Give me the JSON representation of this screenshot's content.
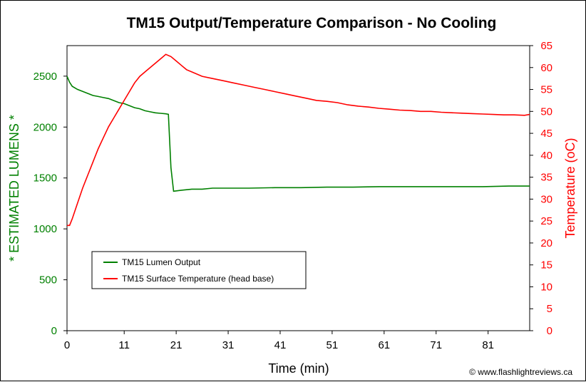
{
  "chart_data": {
    "type": "line",
    "title": "TM15 Output/Temperature Comparison - No Cooling",
    "xlabel": "Time (min)",
    "ylabel_left": "* ESTIMATED LUMENS *",
    "ylabel_right": "Temperature (oC)",
    "xlim": [
      0,
      89
    ],
    "ylim_left": [
      0,
      2800
    ],
    "ylim_right": [
      0,
      65
    ],
    "x_ticks": [
      "0",
      "11",
      "21",
      "31",
      "41",
      "51",
      "61",
      "71",
      "81"
    ],
    "x_tick_values": [
      0,
      11,
      21,
      31,
      41,
      51,
      61,
      71,
      81
    ],
    "y_left_ticks": [
      "0",
      "500",
      "1000",
      "1500",
      "2000",
      "2500"
    ],
    "y_left_tick_values": [
      0,
      500,
      1000,
      1500,
      2000,
      2500
    ],
    "y_right_ticks": [
      "0",
      "5",
      "10",
      "15",
      "20",
      "25",
      "30",
      "35",
      "40",
      "45",
      "50",
      "55",
      "60",
      "65"
    ],
    "y_right_tick_values": [
      0,
      5,
      10,
      15,
      20,
      25,
      30,
      35,
      40,
      45,
      50,
      55,
      60,
      65
    ],
    "grid": false,
    "legend_position": "lower-left",
    "credit": "© www.flashlightreviews.ca",
    "series": [
      {
        "name": "TM15 Lumen Output",
        "axis": "left",
        "color": "#008000",
        "x": [
          0,
          0.5,
          1,
          2,
          3,
          4,
          5,
          6,
          7,
          8,
          9,
          10,
          11,
          12,
          13,
          14,
          15,
          16,
          17,
          18,
          19,
          19.5,
          20,
          20.5,
          22,
          24,
          26,
          28,
          30,
          35,
          40,
          45,
          50,
          55,
          60,
          65,
          70,
          75,
          80,
          85,
          89
        ],
        "y": [
          2500,
          2440,
          2400,
          2370,
          2350,
          2330,
          2310,
          2300,
          2290,
          2280,
          2260,
          2240,
          2230,
          2210,
          2190,
          2180,
          2160,
          2150,
          2140,
          2135,
          2130,
          2125,
          1600,
          1370,
          1380,
          1390,
          1390,
          1400,
          1400,
          1400,
          1405,
          1405,
          1410,
          1410,
          1415,
          1415,
          1415,
          1415,
          1415,
          1420,
          1420
        ]
      },
      {
        "name": "TM15 Surface Temperature (head base)",
        "axis": "right",
        "color": "#ff0000",
        "x": [
          0,
          0.5,
          1,
          2,
          3,
          4,
          5,
          6,
          7,
          8,
          9,
          10,
          11,
          12,
          13,
          14,
          15,
          16,
          17,
          18,
          19,
          20,
          21,
          22,
          23,
          24,
          26,
          28,
          30,
          32,
          34,
          36,
          38,
          40,
          42,
          44,
          46,
          48,
          50,
          52,
          54,
          56,
          58,
          60,
          62,
          64,
          66,
          68,
          70,
          72,
          74,
          76,
          78,
          80,
          82,
          84,
          86,
          88,
          89
        ],
        "y": [
          24,
          24,
          25.5,
          29,
          32.5,
          35.5,
          38.5,
          41.5,
          44,
          46.5,
          48.5,
          50.5,
          52.5,
          54.5,
          56.5,
          58,
          59,
          60,
          61,
          62,
          63,
          62.5,
          61.5,
          60.5,
          59.5,
          59,
          58,
          57.5,
          57,
          56.5,
          56,
          55.5,
          55,
          54.5,
          54,
          53.5,
          53,
          52.5,
          52.3,
          52,
          51.5,
          51.2,
          51,
          50.7,
          50.5,
          50.3,
          50.2,
          50,
          50,
          49.8,
          49.7,
          49.6,
          49.5,
          49.4,
          49.3,
          49.2,
          49.2,
          49.1,
          49.3
        ]
      }
    ]
  }
}
